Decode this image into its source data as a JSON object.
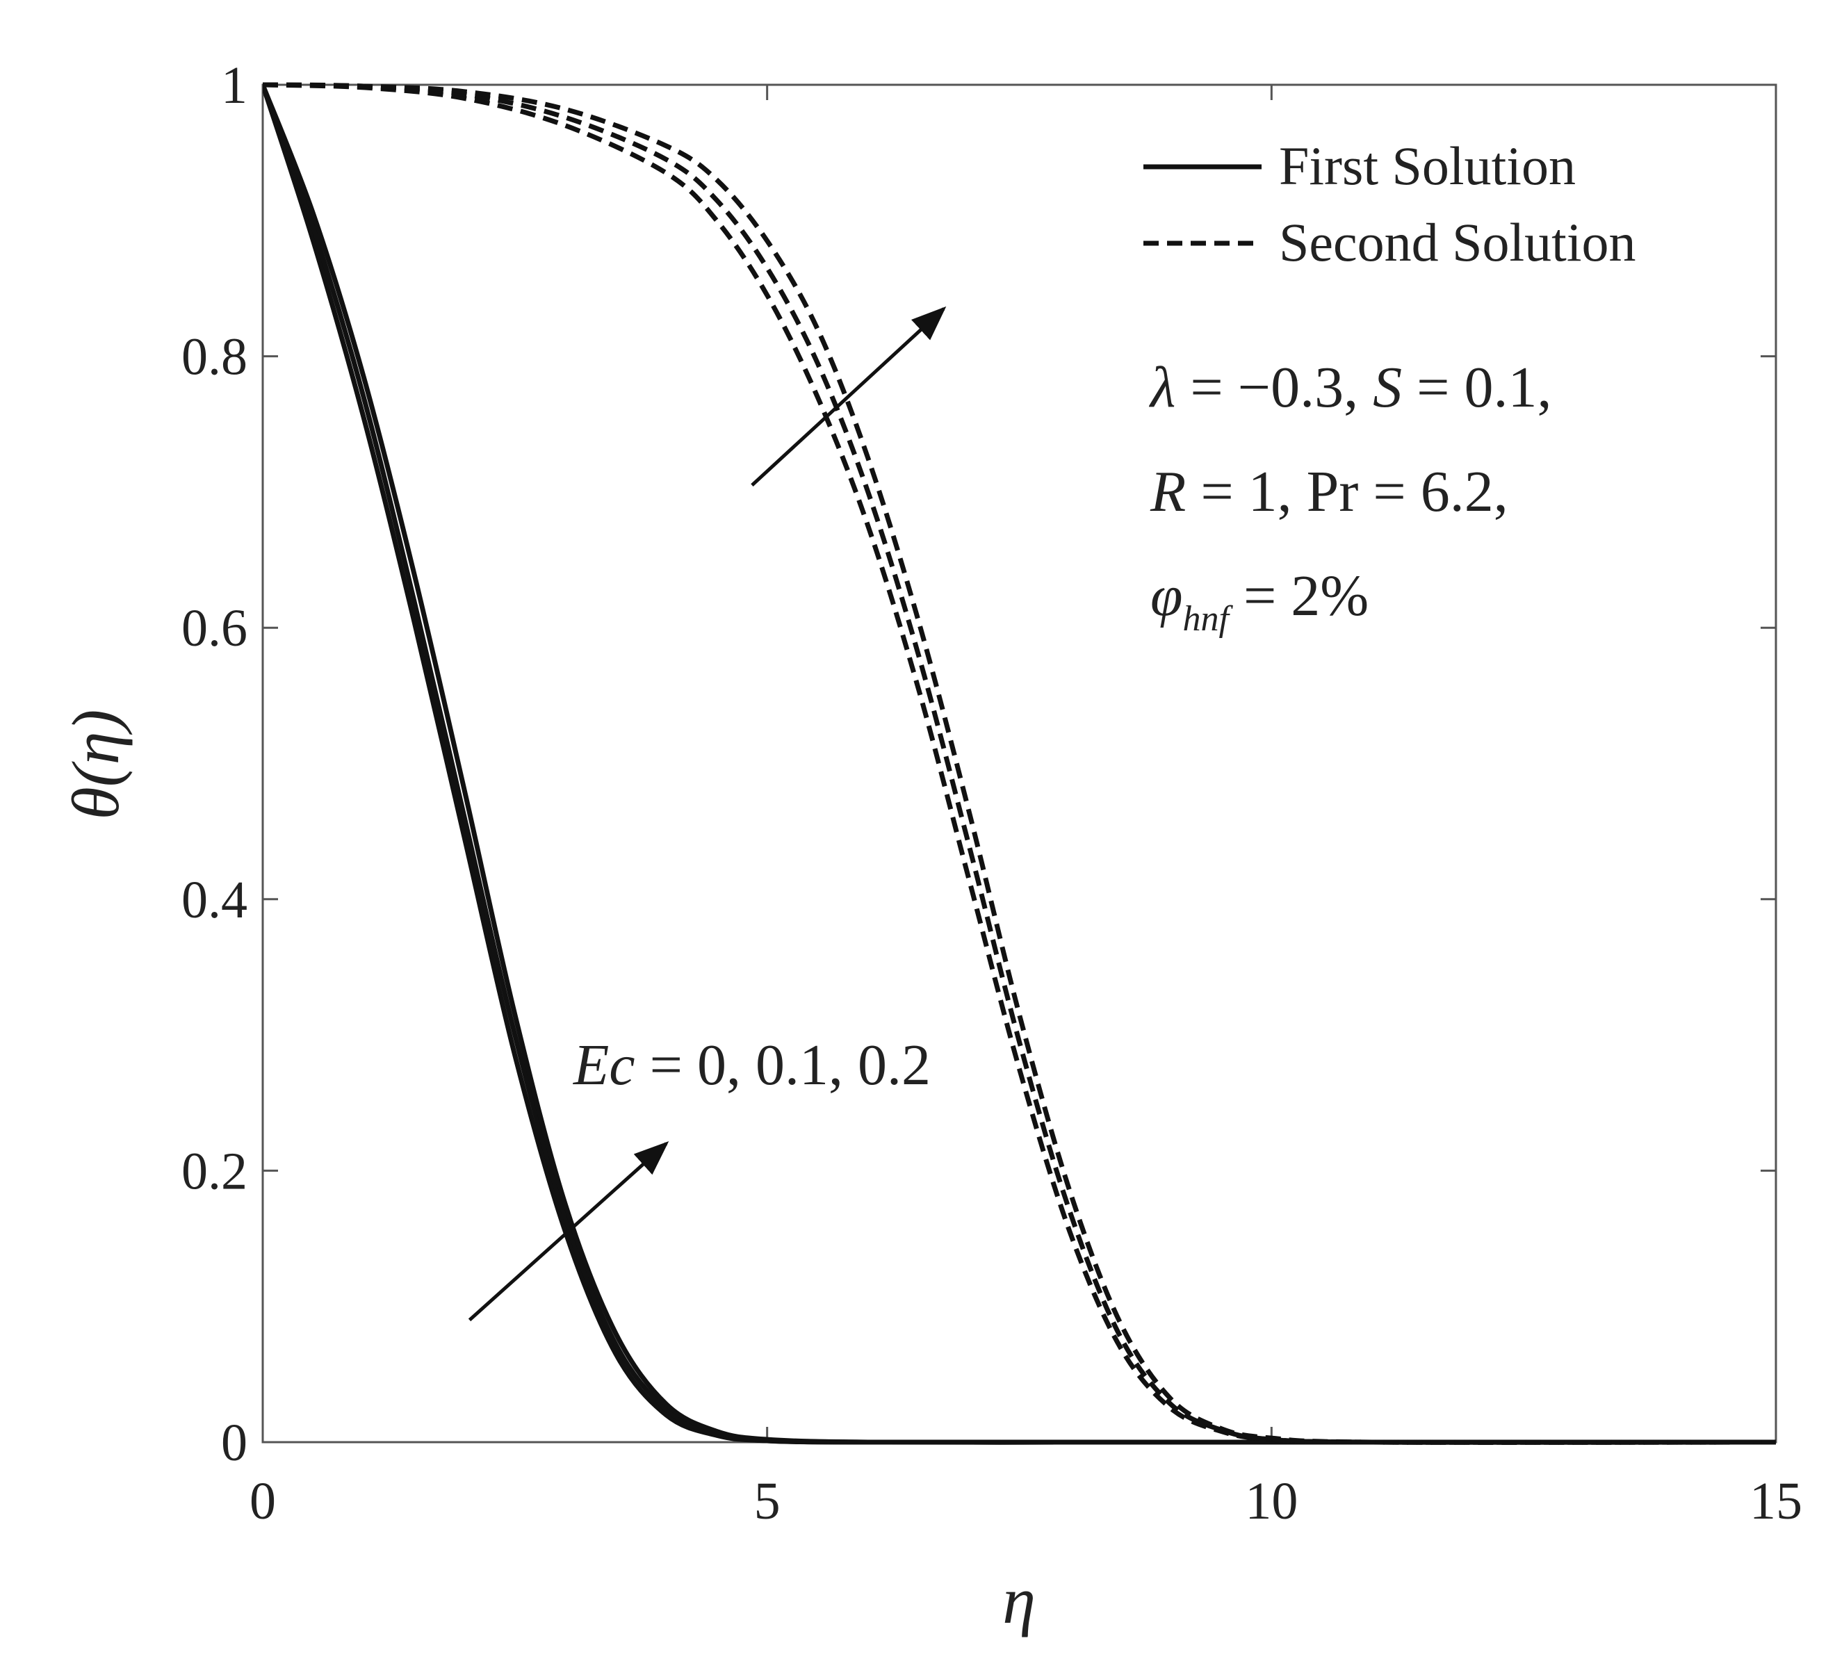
{
  "chart_data": {
    "type": "line",
    "title": "",
    "xlabel": "η",
    "ylabel": "θ(η)",
    "xlim": [
      0,
      15
    ],
    "ylim": [
      0,
      1
    ],
    "xticks": [
      0,
      5,
      10,
      15
    ],
    "xtick_labels": [
      "0",
      "5",
      "10",
      "15"
    ],
    "yticks": [
      0,
      0.2,
      0.4,
      0.6,
      0.8,
      1
    ],
    "ytick_labels": [
      "0",
      "0.2",
      "0.4",
      "0.6",
      "0.8",
      "1"
    ],
    "grid": false,
    "legend": {
      "position": "top-right",
      "entries": [
        {
          "label": "First Solution",
          "style": "solid"
        },
        {
          "label": "Second Solution",
          "style": "dashed"
        }
      ]
    },
    "series": [
      {
        "name": "First Solution, Ec = 0",
        "style": "solid",
        "x": [
          0,
          0.5,
          1,
          1.5,
          2,
          2.5,
          3,
          3.5,
          4,
          4.5,
          5,
          6,
          8,
          10,
          15
        ],
        "y": [
          1,
          0.885,
          0.755,
          0.605,
          0.445,
          0.285,
          0.155,
          0.065,
          0.02,
          0.005,
          0.001,
          0,
          0,
          0,
          0
        ]
      },
      {
        "name": "First Solution, Ec = 0.1",
        "style": "solid",
        "x": [
          0,
          0.5,
          1,
          1.5,
          2,
          2.5,
          3,
          3.5,
          4,
          4.5,
          5,
          6,
          8,
          10,
          15
        ],
        "y": [
          1,
          0.895,
          0.77,
          0.62,
          0.46,
          0.3,
          0.165,
          0.072,
          0.024,
          0.006,
          0.001,
          0,
          0,
          0,
          0
        ]
      },
      {
        "name": "First Solution, Ec = 0.2",
        "style": "solid",
        "x": [
          0,
          0.5,
          1,
          1.5,
          2,
          2.5,
          3,
          3.5,
          4,
          4.5,
          5,
          6,
          8,
          10,
          15
        ],
        "y": [
          1,
          0.905,
          0.785,
          0.64,
          0.48,
          0.315,
          0.175,
          0.08,
          0.028,
          0.008,
          0.002,
          0,
          0,
          0,
          0
        ]
      },
      {
        "name": "Second Solution, Ec = 0",
        "style": "dashed",
        "x": [
          0,
          1,
          2,
          3,
          4,
          4.5,
          5,
          5.5,
          6,
          6.5,
          7,
          7.5,
          8,
          8.5,
          9,
          9.5,
          10,
          11,
          15
        ],
        "y": [
          1,
          0.998,
          0.99,
          0.97,
          0.935,
          0.9,
          0.845,
          0.77,
          0.675,
          0.555,
          0.415,
          0.275,
          0.155,
          0.07,
          0.025,
          0.008,
          0.002,
          0,
          0
        ]
      },
      {
        "name": "Second Solution, Ec = 0.1",
        "style": "dashed",
        "x": [
          0,
          1,
          2,
          3,
          4,
          4.5,
          5,
          5.5,
          6,
          6.5,
          7,
          7.5,
          8,
          8.5,
          9,
          9.5,
          10,
          11,
          15
        ],
        "y": [
          1,
          0.999,
          0.993,
          0.976,
          0.945,
          0.915,
          0.865,
          0.795,
          0.7,
          0.58,
          0.44,
          0.295,
          0.17,
          0.078,
          0.028,
          0.009,
          0.002,
          0,
          0
        ]
      },
      {
        "name": "Second Solution, Ec = 0.2",
        "style": "dashed",
        "x": [
          0,
          1,
          2,
          3,
          4,
          4.5,
          5,
          5.5,
          6,
          6.5,
          7,
          7.5,
          8,
          8.5,
          9,
          9.5,
          10,
          11,
          15
        ],
        "y": [
          1,
          0.999,
          0.995,
          0.982,
          0.955,
          0.93,
          0.885,
          0.82,
          0.725,
          0.605,
          0.465,
          0.315,
          0.185,
          0.088,
          0.032,
          0.01,
          0.003,
          0,
          0
        ]
      }
    ],
    "annotations": {
      "params_line1_lambda": "λ",
      "params_line1_rest": " = −0.3, ",
      "params_line1_S": "S",
      "params_line1_end": " = 0.1,",
      "params_line2_R": "R",
      "params_line2_rest": " = 1, Pr = 6.2,",
      "params_line3_phi": "φ",
      "params_line3_sub": "hnf",
      "params_line3_rest": " = 2%",
      "ec_label_var": "Ec",
      "ec_label_values": " = 0, 0.1, 0.2",
      "arrow_first": {
        "from": [
          2.05,
          0.09
        ],
        "to": [
          4.0,
          0.22
        ]
      },
      "arrow_second": {
        "from": [
          4.85,
          0.705
        ],
        "to": [
          6.75,
          0.835
        ]
      }
    }
  }
}
